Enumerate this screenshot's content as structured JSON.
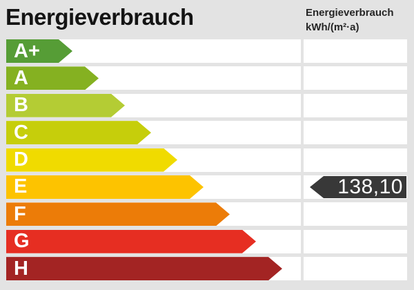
{
  "header": {
    "title": "Energieverbrauch",
    "unit_title": "Energieverbrauch",
    "unit_subtitle": "kWh/(m²·a)"
  },
  "scale": {
    "rows": [
      {
        "label": "A+",
        "color": "#569d36",
        "arrow_width": 96
      },
      {
        "label": "A",
        "color": "#85b121",
        "arrow_width": 134
      },
      {
        "label": "B",
        "color": "#b4cc34",
        "arrow_width": 172
      },
      {
        "label": "C",
        "color": "#c6ce0b",
        "arrow_width": 210
      },
      {
        "label": "D",
        "color": "#f0db00",
        "arrow_width": 248
      },
      {
        "label": "E",
        "color": "#fdc300",
        "arrow_width": 286
      },
      {
        "label": "F",
        "color": "#ec7c08",
        "arrow_width": 324
      },
      {
        "label": "G",
        "color": "#e62e22",
        "arrow_width": 362
      },
      {
        "label": "H",
        "color": "#a32423",
        "arrow_width": 400
      }
    ]
  },
  "value_marker": {
    "value": "138,10",
    "row": "E",
    "color": "#383838",
    "text_color": "#ffffff"
  },
  "colors": {
    "background": "#e3e3e3",
    "row_background": "#ffffff",
    "title_color": "#141414"
  },
  "chart_data": {
    "type": "bar",
    "title": "Energieverbrauch",
    "ylabel": "kWh/(m²·a)",
    "categories": [
      "A+",
      "A",
      "B",
      "C",
      "D",
      "E",
      "F",
      "G",
      "H"
    ],
    "values": [
      96,
      134,
      172,
      210,
      248,
      286,
      324,
      362,
      400
    ],
    "legend_position": "none",
    "grid": false,
    "annotations": [
      {
        "label": "138,10",
        "value": 138.1,
        "category": "E"
      }
    ]
  }
}
